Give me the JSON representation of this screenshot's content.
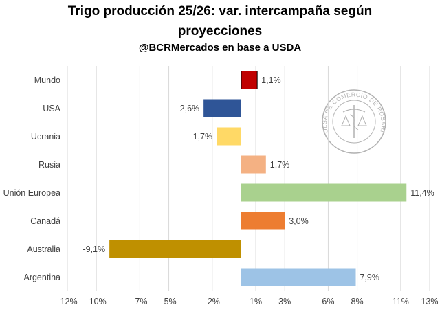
{
  "title_line1": "Trigo producción 25/26: var. intercampaña según",
  "title_line2": "proyecciones",
  "subtitle": "@BCRMercados en base a USDA",
  "watermark": {
    "text": "BOLSA DE COMERCIO DE ROSARIO",
    "color": "#b0b0b0"
  },
  "chart_data": {
    "type": "bar",
    "orientation": "horizontal",
    "categories": [
      "Mundo",
      "USA",
      "Ucrania",
      "Rusia",
      "Unión Europea",
      "Canadá",
      "Australia",
      "Argentina"
    ],
    "values": [
      1.1,
      -2.6,
      -1.7,
      1.7,
      11.4,
      3.0,
      -9.1,
      7.9
    ],
    "data_labels": [
      "1,1%",
      "-2,6%",
      "-1,7%",
      "1,7%",
      "11,4%",
      "3,0%",
      "-9,1%",
      "7,9%"
    ],
    "colors": [
      "#c00000",
      "#2f5597",
      "#ffd966",
      "#f4b183",
      "#a9d18e",
      "#ed7d31",
      "#bf9000",
      "#9dc3e6"
    ],
    "xlim": [
      -12,
      13
    ],
    "xticks": [
      -12,
      -10,
      -7,
      -5,
      -2,
      1,
      3,
      6,
      8,
      11,
      13
    ],
    "xtick_labels": [
      "-12%",
      "-10%",
      "-7%",
      "-5%",
      "-2%",
      "1%",
      "3%",
      "6%",
      "8%",
      "11%",
      "13%"
    ],
    "grid": "vertical",
    "legend": "none"
  }
}
